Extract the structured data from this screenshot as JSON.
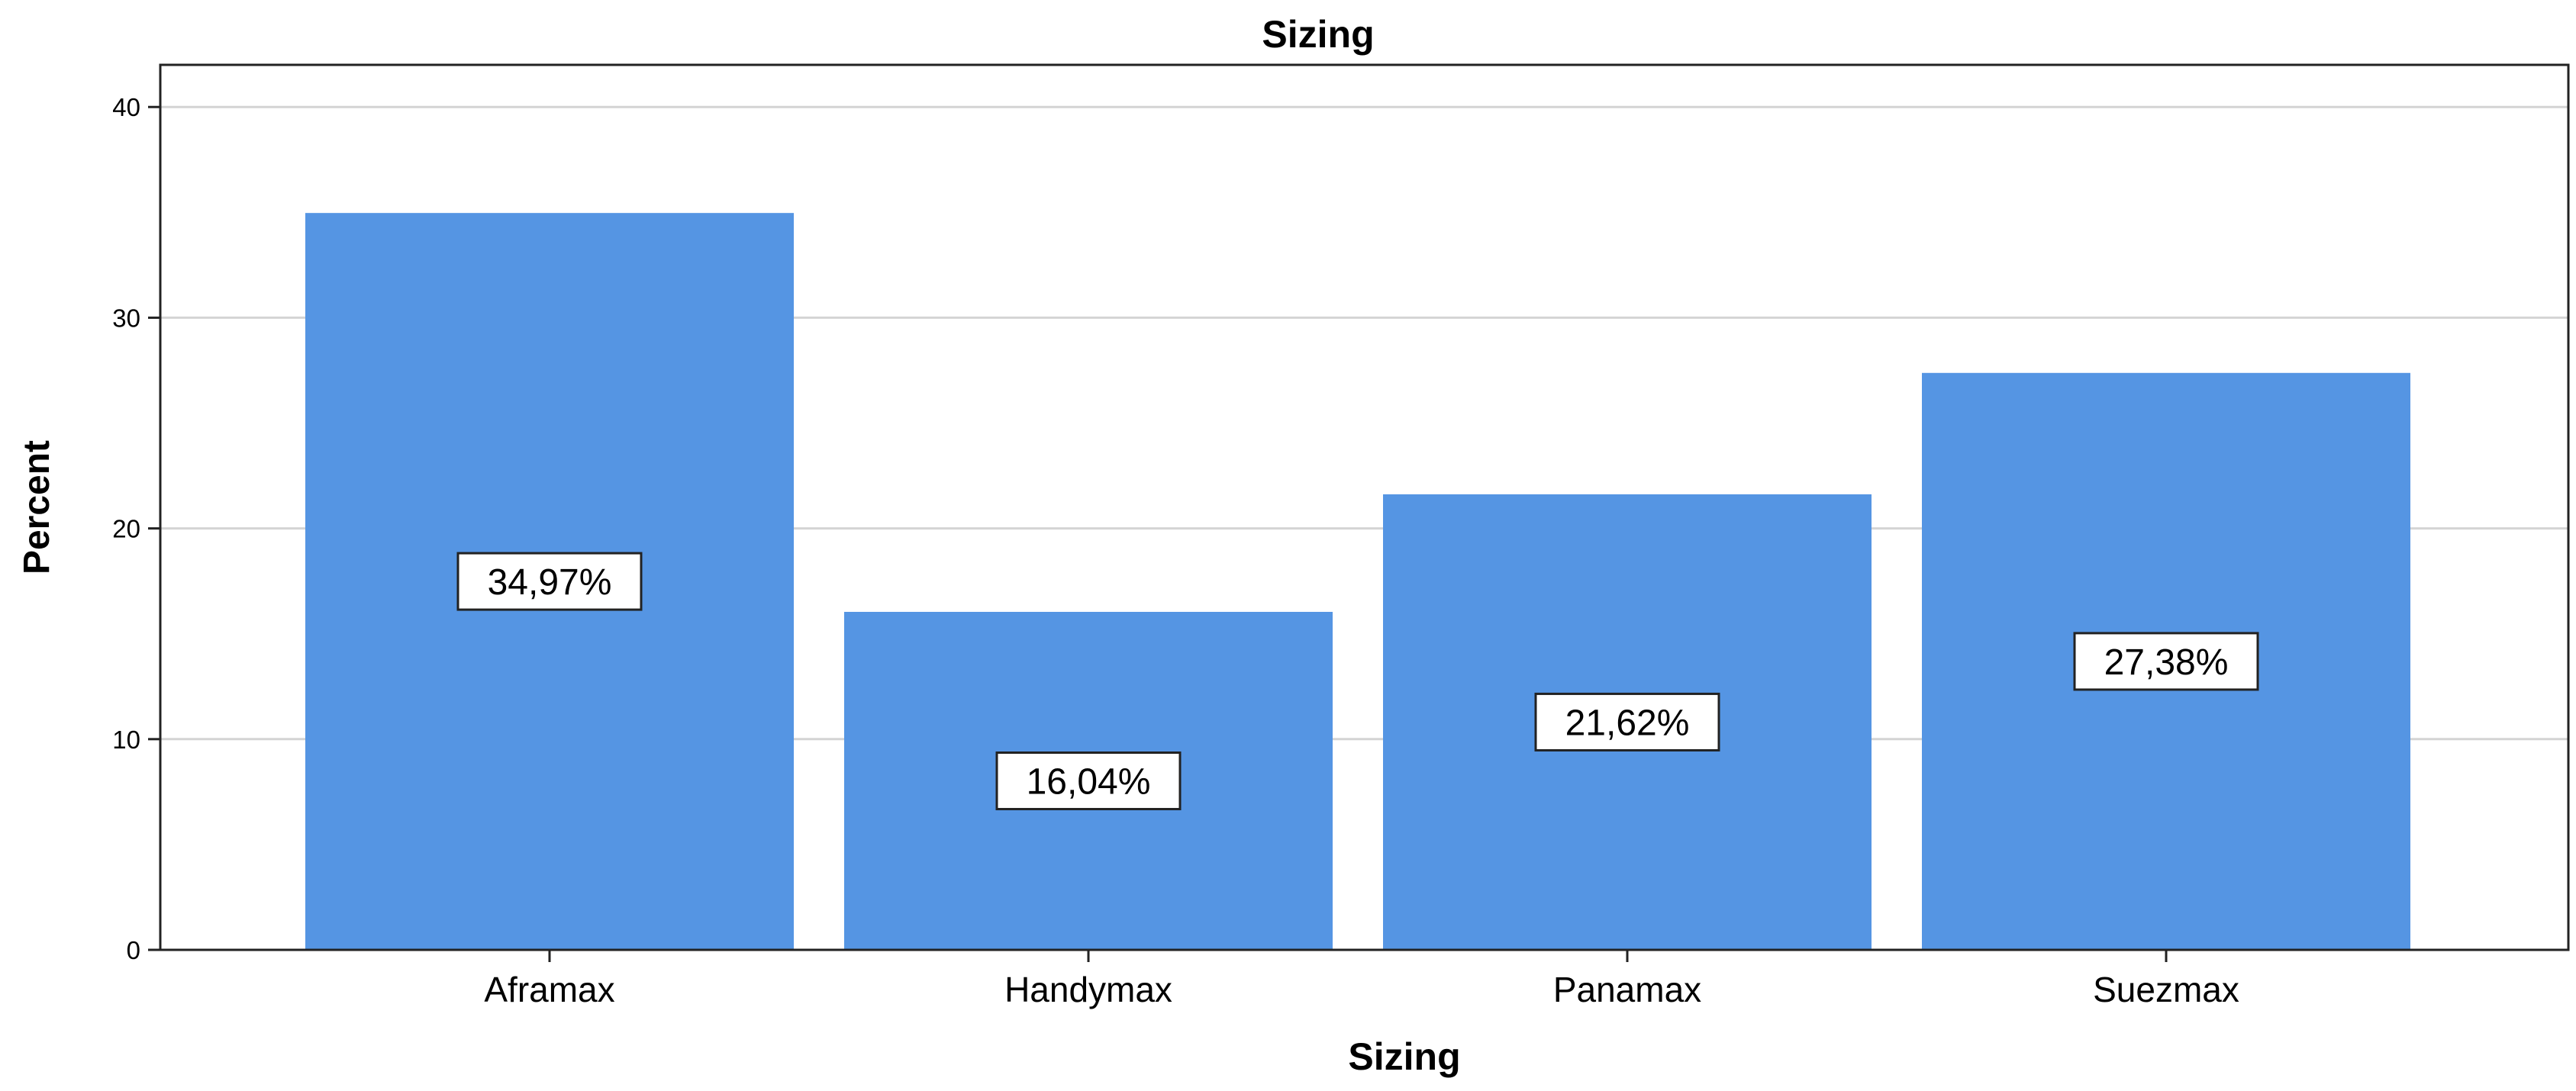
{
  "chart_data": {
    "type": "bar",
    "title": "Sizing",
    "xlabel": "Sizing",
    "ylabel": "Percent",
    "categories": [
      "Aframax",
      "Handymax",
      "Panamax",
      "Suezmax"
    ],
    "values": [
      34.97,
      16.04,
      21.62,
      27.38
    ],
    "data_labels": [
      "34,97%",
      "16,04%",
      "21,62%",
      "27,38%"
    ],
    "ylim": [
      0,
      42
    ],
    "yticks": [
      0,
      10,
      20,
      30,
      40
    ],
    "ytick_labels": [
      "0",
      "10",
      "20",
      "30",
      "40"
    ],
    "grid": true,
    "bar_color": "#5595e3",
    "grid_color": "#d4d4d4"
  }
}
